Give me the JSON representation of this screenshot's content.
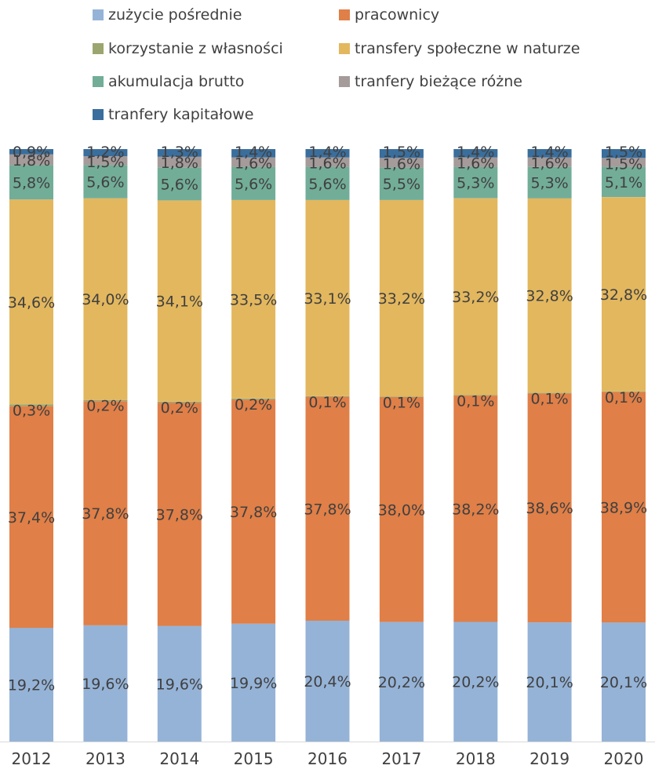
{
  "chart_data": {
    "type": "bar",
    "stacked": true,
    "title": "",
    "xlabel": "",
    "ylabel": "",
    "ylim": [
      0,
      100
    ],
    "legend_position": "top",
    "categories": [
      "2012",
      "2013",
      "2014",
      "2015",
      "2016",
      "2017",
      "2018",
      "2019",
      "2020"
    ],
    "series": [
      {
        "name": "zużycie pośrednie",
        "color": "#95B3D7",
        "values": [
          19.2,
          19.6,
          19.6,
          19.9,
          20.4,
          20.2,
          20.2,
          20.1,
          20.1
        ],
        "labels": [
          "19,2%",
          "19,6%",
          "19,6%",
          "19,9%",
          "20,4%",
          "20,2%",
          "20,2%",
          "20,1%",
          "20,1%"
        ]
      },
      {
        "name": "pracownicy",
        "color": "#E07F47",
        "values": [
          37.4,
          37.8,
          37.8,
          37.8,
          37.8,
          38.0,
          38.2,
          38.6,
          38.9
        ],
        "labels": [
          "37,4%",
          "37,8%",
          "37,8%",
          "37,8%",
          "37,8%",
          "38,0%",
          "38,2%",
          "38,6%",
          "38,9%"
        ]
      },
      {
        "name": "korzystanie z własności",
        "color": "#9BA66E",
        "values": [
          0.3,
          0.2,
          0.2,
          0.2,
          0.1,
          0.1,
          0.1,
          0.1,
          0.1
        ],
        "labels": [
          "0,3%",
          "0,2%",
          "0,2%",
          "0,2%",
          "0,1%",
          "0,1%",
          "0,1%",
          "0,1%",
          "0,1%"
        ]
      },
      {
        "name": "transfery społeczne w naturze",
        "color": "#E3B75E",
        "values": [
          34.6,
          34.0,
          34.1,
          33.5,
          33.1,
          33.2,
          33.2,
          32.8,
          32.8
        ],
        "labels": [
          "34,6%",
          "34,0%",
          "34,1%",
          "33,5%",
          "33,1%",
          "33,2%",
          "33,2%",
          "32,8%",
          "32,8%"
        ]
      },
      {
        "name": "akumulacja brutto",
        "color": "#72AD98",
        "values": [
          5.8,
          5.6,
          5.6,
          5.6,
          5.6,
          5.5,
          5.3,
          5.3,
          5.1
        ],
        "labels": [
          "5,8%",
          "5,6%",
          "5,6%",
          "5,6%",
          "5,6%",
          "5,5%",
          "5,3%",
          "5,3%",
          "5,1%"
        ]
      },
      {
        "name": "tranfery bieżące różne",
        "color": "#A59B9B",
        "values": [
          1.8,
          1.5,
          1.8,
          1.6,
          1.6,
          1.6,
          1.6,
          1.6,
          1.5
        ],
        "labels": [
          "1,8%",
          "1,5%",
          "1,8%",
          "1,6%",
          "1,6%",
          "1,6%",
          "1,6%",
          "1,6%",
          "1,5%"
        ]
      },
      {
        "name": "tranfery kapitałowe",
        "color": "#3A6E9C",
        "values": [
          0.9,
          1.2,
          1.3,
          1.4,
          1.4,
          1.5,
          1.4,
          1.4,
          1.5
        ],
        "labels": [
          "0,9%",
          "1,2%",
          "1,3%",
          "1,4%",
          "1,4%",
          "1,5%",
          "1,4%",
          "1,4%",
          "1,5%"
        ]
      }
    ]
  }
}
